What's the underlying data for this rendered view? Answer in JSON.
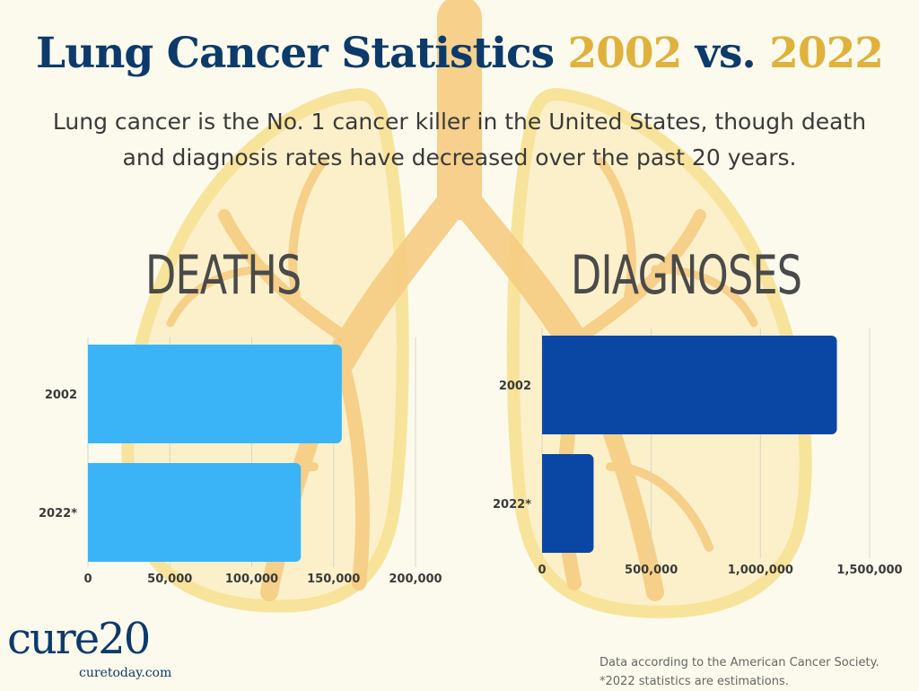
{
  "title": {
    "main": "Lung Cancer Statistics",
    "year_a": "2002",
    "vs": "vs.",
    "year_b": "2022"
  },
  "subtitle": {
    "line1": "Lung cancer is the No. 1 cancer killer in the United States, though death",
    "line2": "and diagnosis rates have decreased over the past 20 years."
  },
  "brand": {
    "logo_text": "cure20",
    "url": "curetoday.com"
  },
  "source": {
    "line1": "Data according to the American Cancer Society.",
    "line2": "*2022 statistics are estimations."
  },
  "colors": {
    "background": "#fbfaec",
    "title_navy": "#0c3a6b",
    "title_gold": "#e0b23c",
    "deaths_bar": "#3bb4f7",
    "diagnoses_bar": "#0a47a5",
    "lung_outline": "#f8e08e",
    "bronchi": "#f6cc82"
  },
  "chart_data": [
    {
      "type": "bar",
      "orientation": "horizontal",
      "title": "DEATHS",
      "categories": [
        "2002",
        "2022*"
      ],
      "values": [
        155000,
        130000
      ],
      "xlim": [
        0,
        200000
      ],
      "ticks": [
        0,
        50000,
        100000,
        150000,
        200000
      ],
      "tick_labels": [
        "0",
        "50,000",
        "100,000",
        "150,000",
        "200,000"
      ],
      "grid": true
    },
    {
      "type": "bar",
      "orientation": "horizontal",
      "title": "DIAGNOSES",
      "categories": [
        "2002",
        "2022*"
      ],
      "values": [
        1350000,
        236000
      ],
      "xlim": [
        0,
        1500000
      ],
      "ticks": [
        0,
        500000,
        1000000,
        1500000
      ],
      "tick_labels": [
        "0",
        "500,000",
        "1,000,000",
        "1,500,000"
      ],
      "grid": true
    }
  ]
}
